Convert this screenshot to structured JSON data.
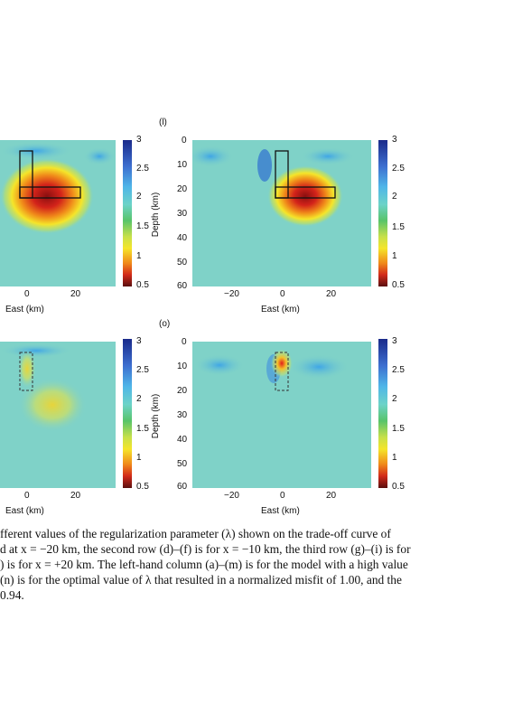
{
  "panels": [
    {
      "letter": "",
      "ylabel": "",
      "yticks": [],
      "xticks": [
        "0",
        "20"
      ],
      "xlabel": "East (km)",
      "cbar_ticks": [
        "3",
        "2.5",
        "2",
        "1.5",
        "1",
        "0.5"
      ],
      "anomaly": "strong",
      "box": "solid"
    },
    {
      "letter": "(l)",
      "ylabel": "Depth (km)",
      "yticks": [
        "0",
        "10",
        "20",
        "30",
        "40",
        "50",
        "60"
      ],
      "xticks": [
        "−20",
        "0",
        "20"
      ],
      "xlabel": "East (km)",
      "cbar_ticks": [
        "3",
        "2.5",
        "2",
        "1.5",
        "1",
        "0.5"
      ],
      "anomaly": "strong",
      "box": "solid"
    },
    {
      "letter": "",
      "ylabel": "",
      "yticks": [],
      "xticks": [
        "0",
        "20"
      ],
      "xlabel": "East (km)",
      "cbar_ticks": [
        "3",
        "2.5",
        "2",
        "1.5",
        "1",
        "0.5"
      ],
      "anomaly": "weak",
      "box": "dashed"
    },
    {
      "letter": "(o)",
      "ylabel": "Depth (km)",
      "yticks": [
        "0",
        "10",
        "20",
        "30",
        "40",
        "50",
        "60"
      ],
      "xticks": [
        "−20",
        "0",
        "20"
      ],
      "xlabel": "East (km)",
      "cbar_ticks": [
        "3",
        "2.5",
        "2",
        "1.5",
        "1",
        "0.5"
      ],
      "anomaly": "small",
      "box": "dashed"
    }
  ],
  "caption": {
    "lines": [
      "fferent values of the regularization parameter (λ) shown on the trade-off curve of",
      "d at x = −20 km, the second row (d)–(f) is for x = −10 km, the third row (g)–(i) is for",
      ") is for x = +20 km. The left-hand column (a)–(m) is for the model with a high value",
      "(n) is for the optimal value of λ that resulted in a normalized misfit of 1.00, and the",
      "0.94."
    ]
  }
}
